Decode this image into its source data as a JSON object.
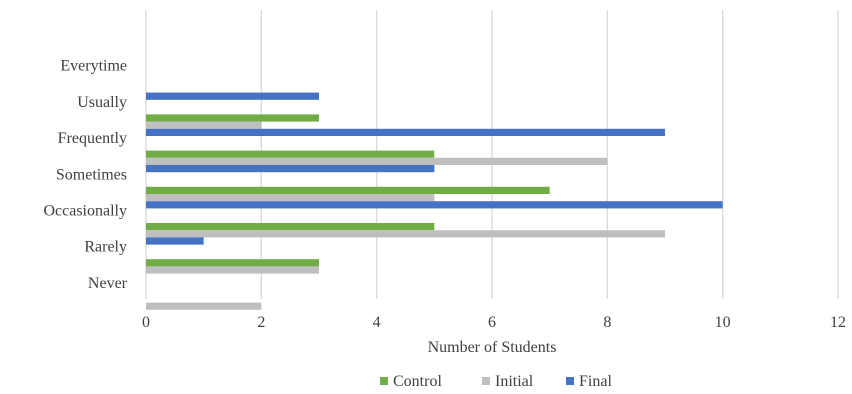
{
  "chart_data": {
    "type": "bar",
    "orientation": "horizontal",
    "categories": [
      "Everytime",
      "Usually",
      "Frequently",
      "Sometimes",
      "Occasionally",
      "Rarely",
      "Never"
    ],
    "series": [
      {
        "name": "Control",
        "color": "#70ad47",
        "values": [
          0,
          3,
          5,
          7,
          5,
          3,
          0
        ]
      },
      {
        "name": "Initial",
        "color": "#bfbfbf",
        "values": [
          0,
          2,
          8,
          5,
          9,
          3,
          2
        ]
      },
      {
        "name": "Final",
        "color": "#4472c4",
        "values": [
          3,
          9,
          5,
          10,
          1,
          0,
          0
        ]
      }
    ],
    "title": "",
    "xlabel": "Number of Students",
    "ylabel": "",
    "xlim": [
      0,
      12
    ],
    "x_ticks": [
      0,
      2,
      4,
      6,
      8,
      10,
      12
    ],
    "grid": "vertical",
    "legend_position": "bottom"
  }
}
